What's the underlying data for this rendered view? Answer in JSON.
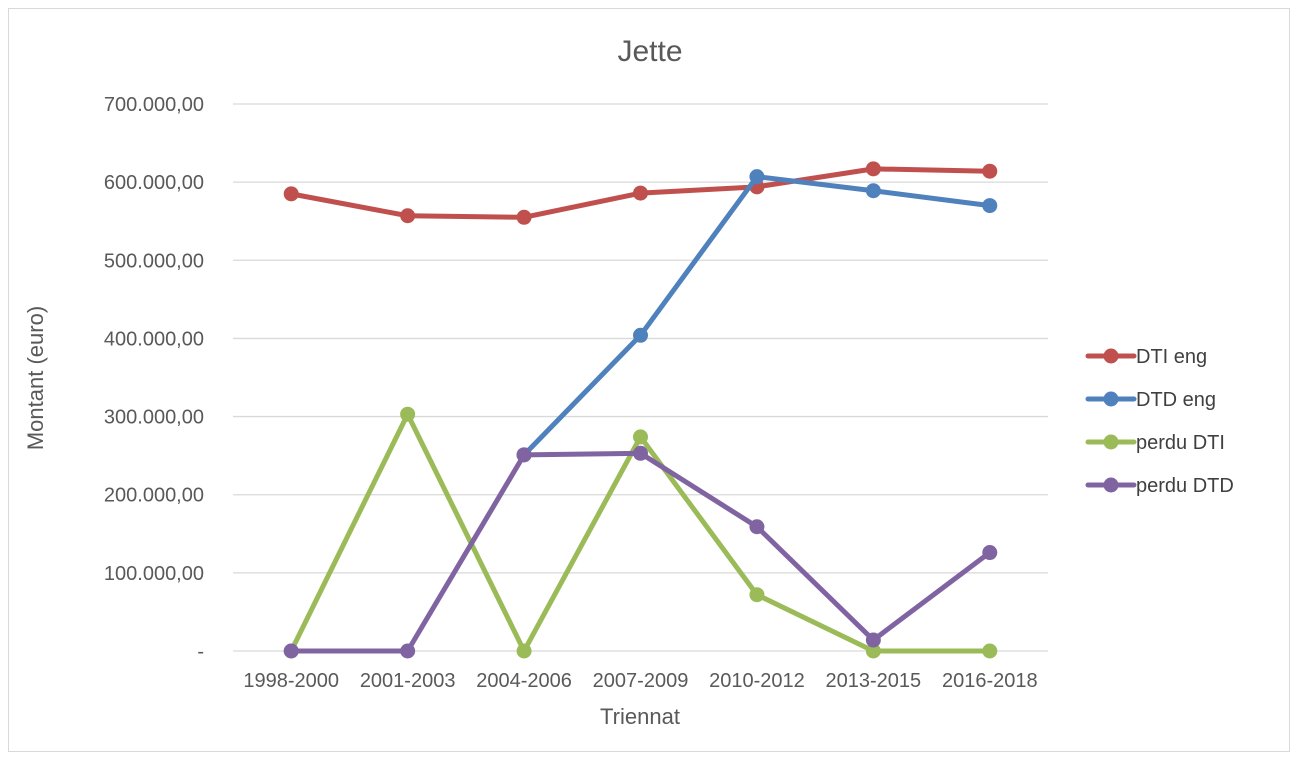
{
  "chart_data": {
    "type": "line",
    "title": "Jette",
    "xlabel": "Triennat",
    "ylabel": "Montant (euro)",
    "categories": [
      "1998-2000",
      "2001-2003",
      "2004-2006",
      "2007-2009",
      "2010-2012",
      "2013-2015",
      "2016-2018"
    ],
    "ylim": [
      0,
      700000
    ],
    "yticks": [
      0,
      100000,
      200000,
      300000,
      400000,
      500000,
      600000,
      700000
    ],
    "ytick_labels": [
      "-",
      "100.000,00",
      "200.000,00",
      "300.000,00",
      "400.000,00",
      "500.000,00",
      "600.000,00",
      "700.000,00"
    ],
    "grid": true,
    "legend_position": "right",
    "series": [
      {
        "name": "DTI eng",
        "color": "#c0504d",
        "values": [
          585000,
          557000,
          555000,
          586000,
          594000,
          617000,
          614000
        ]
      },
      {
        "name": "DTD eng",
        "color": "#4f81bd",
        "values": [
          null,
          null,
          251000,
          404000,
          607000,
          589000,
          570000
        ]
      },
      {
        "name": "perdu DTI",
        "color": "#9bbb59",
        "values": [
          0,
          303000,
          0,
          274000,
          72000,
          0,
          0
        ]
      },
      {
        "name": "perdu DTD",
        "color": "#8064a2",
        "values": [
          0,
          0,
          251000,
          253000,
          159000,
          14000,
          126000
        ]
      }
    ]
  }
}
